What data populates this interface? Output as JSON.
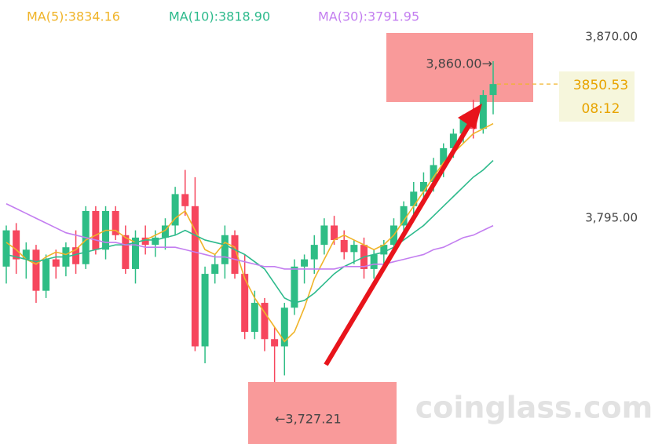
{
  "chart_data": {
    "type": "candlestick",
    "up_color": "#2ebd85",
    "down_color": "#f6465d",
    "ylim": [
      3701.6,
      3885.3
    ],
    "yticks": [
      {
        "value": 3870,
        "label": "3,870.00"
      },
      {
        "value": 3795,
        "label": "3,795.00"
      }
    ],
    "ohlc": [
      [
        3775,
        3792,
        3768,
        3790
      ],
      [
        3790,
        3793,
        3772,
        3778
      ],
      [
        3778,
        3785,
        3770,
        3782
      ],
      [
        3782,
        3784,
        3760,
        3765
      ],
      [
        3765,
        3780,
        3762,
        3778
      ],
      [
        3778,
        3782,
        3770,
        3775
      ],
      [
        3775,
        3785,
        3771,
        3783
      ],
      [
        3783,
        3790,
        3772,
        3776
      ],
      [
        3776,
        3800,
        3774,
        3798
      ],
      [
        3798,
        3800,
        3780,
        3782
      ],
      [
        3782,
        3800,
        3778,
        3798
      ],
      [
        3798,
        3800,
        3786,
        3788
      ],
      [
        3788,
        3792,
        3772,
        3774
      ],
      [
        3774,
        3790,
        3768,
        3787
      ],
      [
        3787,
        3792,
        3780,
        3784
      ],
      [
        3784,
        3790,
        3779,
        3787
      ],
      [
        3787,
        3795,
        3782,
        3792
      ],
      [
        3792,
        3808,
        3788,
        3805
      ],
      [
        3805,
        3815,
        3796,
        3800
      ],
      [
        3800,
        3812,
        3740,
        3742
      ],
      [
        3742,
        3775,
        3735,
        3772
      ],
      [
        3772,
        3780,
        3768,
        3776
      ],
      [
        3776,
        3792,
        3770,
        3788
      ],
      [
        3788,
        3790,
        3770,
        3772
      ],
      [
        3772,
        3780,
        3745,
        3748
      ],
      [
        3748,
        3765,
        3745,
        3760
      ],
      [
        3760,
        3762,
        3740,
        3745
      ],
      [
        3745,
        3750,
        3727.21,
        3742
      ],
      [
        3742,
        3760,
        3730,
        3758
      ],
      [
        3758,
        3778,
        3755,
        3775
      ],
      [
        3775,
        3780,
        3768,
        3778
      ],
      [
        3778,
        3788,
        3772,
        3784
      ],
      [
        3784,
        3795,
        3780,
        3792
      ],
      [
        3792,
        3796,
        3784,
        3786
      ],
      [
        3786,
        3790,
        3778,
        3781
      ],
      [
        3781,
        3786,
        3776,
        3784
      ],
      [
        3784,
        3787,
        3770,
        3774
      ],
      [
        3774,
        3782,
        3770,
        3780
      ],
      [
        3780,
        3786,
        3776,
        3784
      ],
      [
        3784,
        3795,
        3780,
        3792
      ],
      [
        3792,
        3802,
        3788,
        3800
      ],
      [
        3800,
        3810,
        3796,
        3806
      ],
      [
        3806,
        3814,
        3802,
        3810
      ],
      [
        3810,
        3820,
        3806,
        3817
      ],
      [
        3817,
        3826,
        3812,
        3824
      ],
      [
        3824,
        3832,
        3820,
        3830
      ],
      [
        3830,
        3838,
        3826,
        3836
      ],
      [
        3836,
        3844,
        3828,
        3832
      ],
      [
        3832,
        3848,
        3830,
        3846
      ],
      [
        3846,
        3860,
        3838,
        3850.53
      ]
    ],
    "series": [
      {
        "name": "MA(5):3834.16",
        "color": "#f0b429",
        "values": [
          3785,
          3782,
          3778,
          3776,
          3779,
          3781,
          3780,
          3782,
          3786,
          3788,
          3790,
          3790,
          3787,
          3785,
          3786,
          3788,
          3790,
          3795,
          3798,
          3790,
          3782,
          3780,
          3785,
          3783,
          3770,
          3762,
          3756,
          3750,
          3744,
          3748,
          3758,
          3770,
          3778,
          3786,
          3788,
          3786,
          3784,
          3782,
          3784,
          3788,
          3794,
          3800,
          3806,
          3812,
          3818,
          3822,
          3826,
          3830,
          3832,
          3834.16
        ]
      },
      {
        "name": "MA(10):3818.90",
        "color": "#2dba8c",
        "values": [
          3780,
          3779,
          3778,
          3777,
          3778,
          3779,
          3779,
          3780,
          3781,
          3782,
          3783,
          3784,
          3784,
          3785,
          3786,
          3786,
          3787,
          3788,
          3790,
          3788,
          3786,
          3785,
          3784,
          3782,
          3780,
          3777,
          3774,
          3768,
          3762,
          3760,
          3761,
          3764,
          3768,
          3772,
          3775,
          3777,
          3779,
          3780,
          3781,
          3783,
          3786,
          3789,
          3792,
          3796,
          3800,
          3804,
          3808,
          3812,
          3815,
          3818.9
        ]
      },
      {
        "name": "MA(30):3791.95",
        "color": "#c37ef0",
        "values": [
          3801,
          3799,
          3797,
          3795,
          3793,
          3791,
          3789,
          3788,
          3787,
          3786,
          3785,
          3785,
          3784,
          3784,
          3783,
          3783,
          3783,
          3783,
          3782,
          3781,
          3780,
          3779,
          3779,
          3778,
          3777,
          3776,
          3775,
          3775,
          3774,
          3774,
          3774,
          3774,
          3774,
          3774,
          3775,
          3775,
          3775,
          3776,
          3776,
          3777,
          3778,
          3779,
          3780,
          3782,
          3783,
          3785,
          3787,
          3788,
          3790,
          3791.95
        ]
      }
    ],
    "high_marker": {
      "value": 3860,
      "label": "3,860.00→"
    },
    "low_marker": {
      "value": 3727.21,
      "label": "←3,727.21"
    },
    "current_price": 3850.53,
    "countdown": "08:12",
    "watermark": "coinglass.com"
  }
}
